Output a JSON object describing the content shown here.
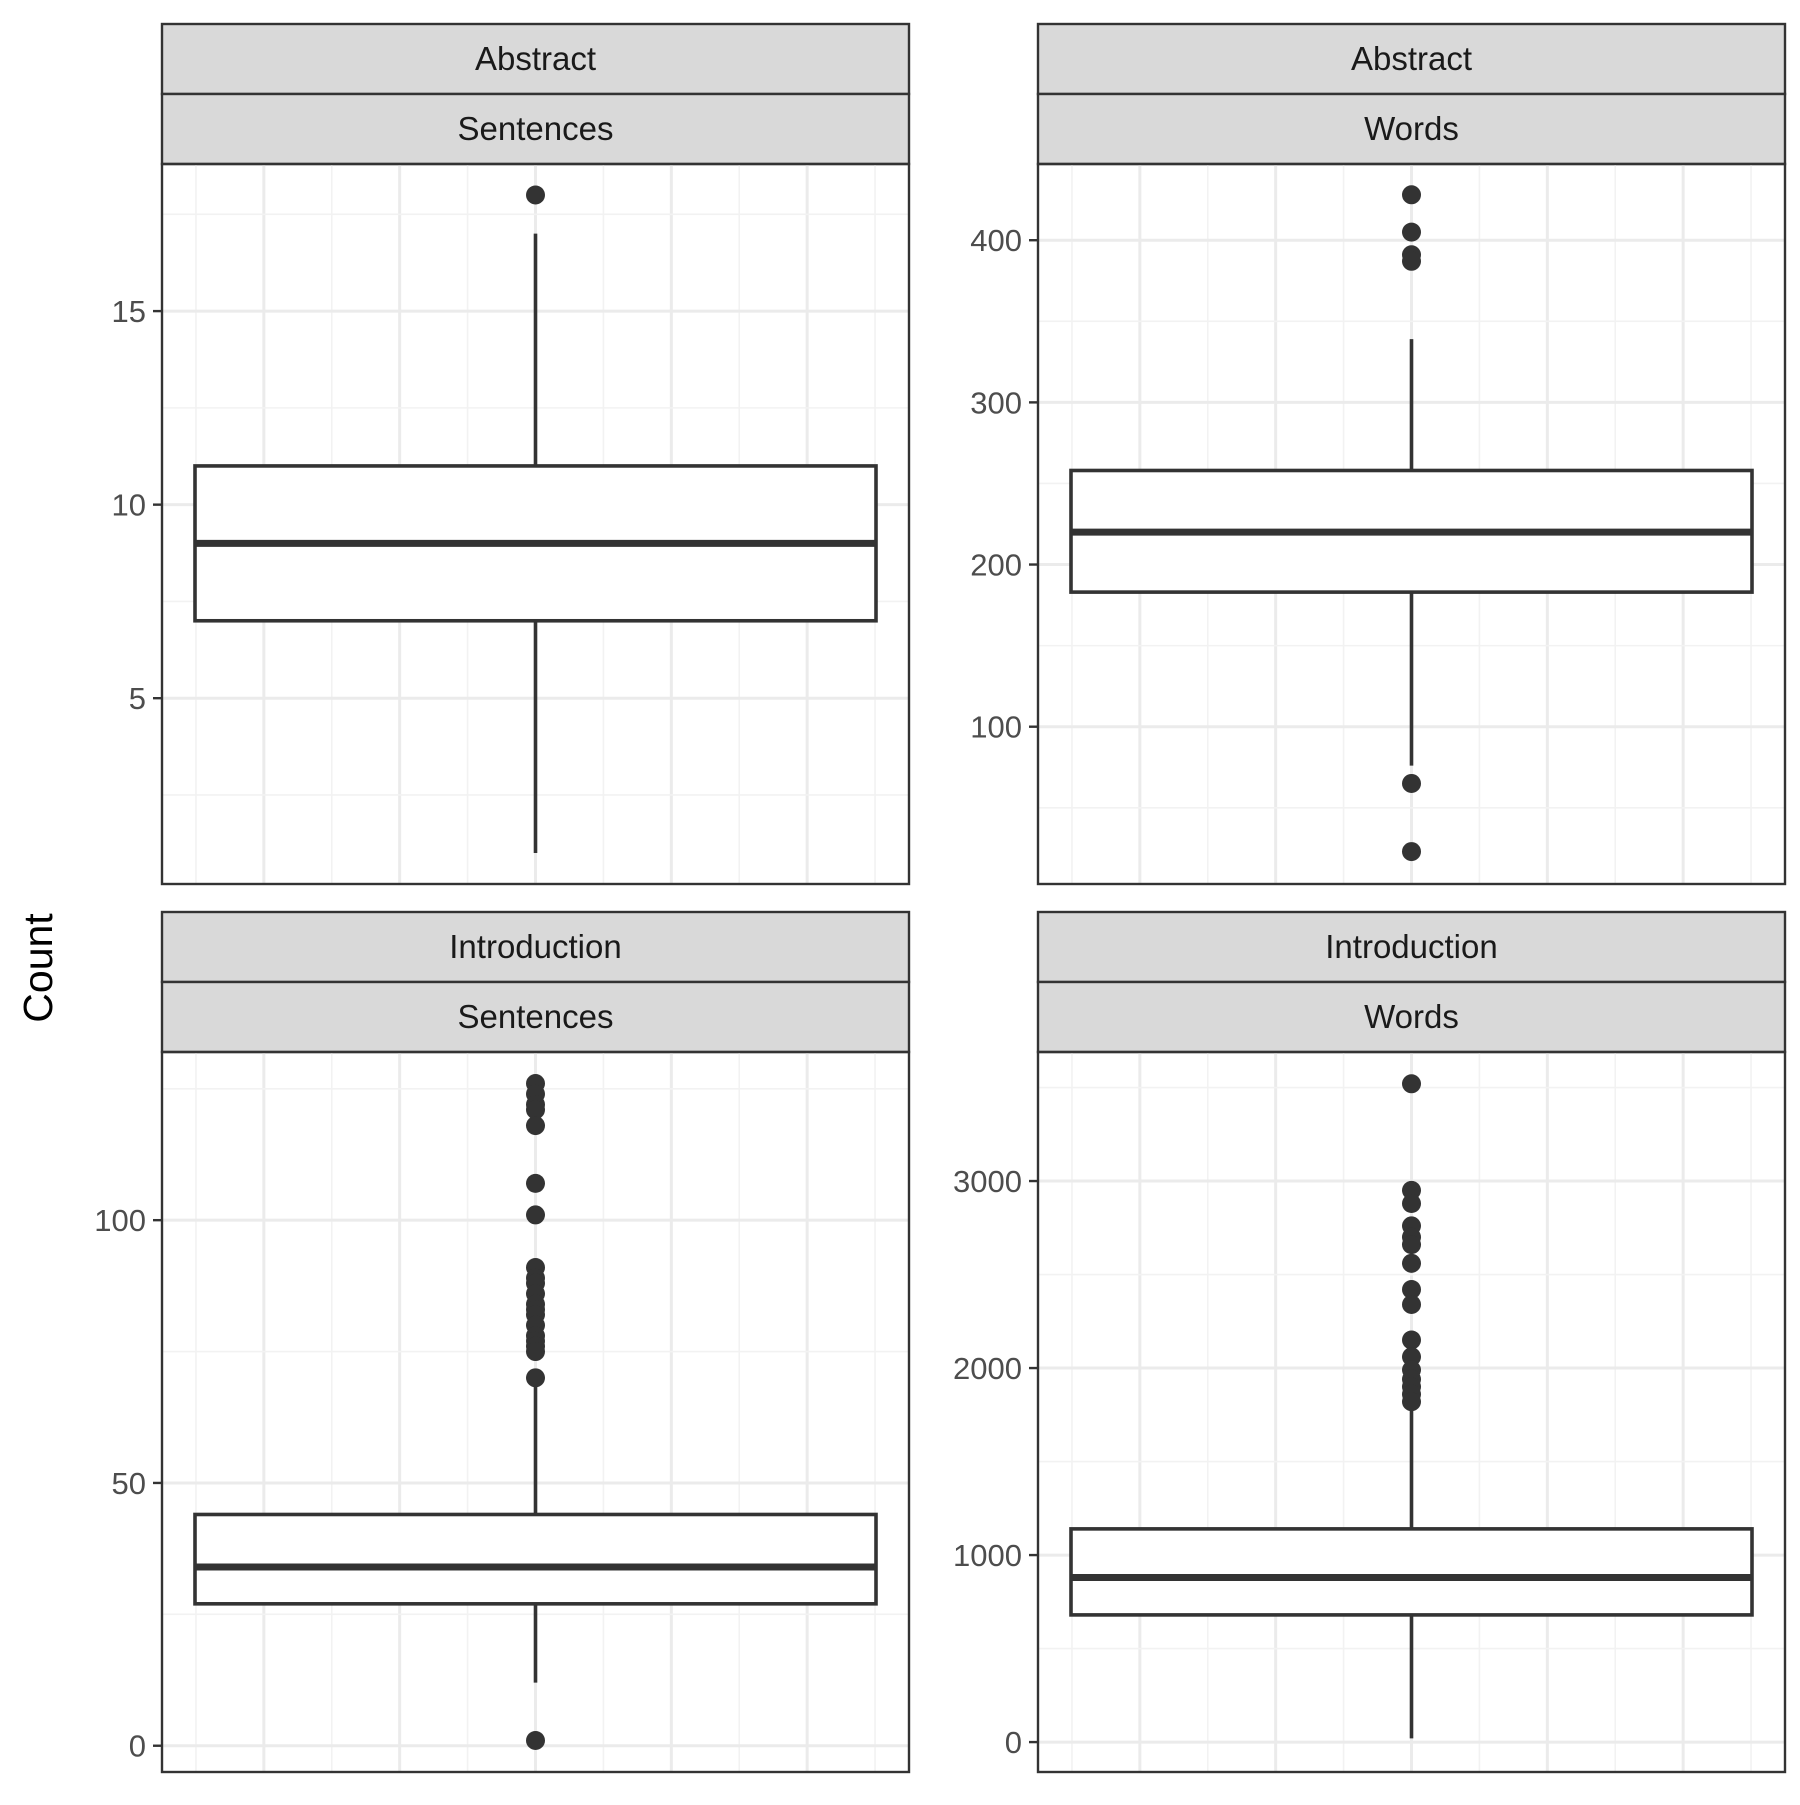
{
  "chart_data": {
    "type": "boxplot",
    "ylabel": "Count",
    "grid": true,
    "facets": [
      {
        "strip_top": "Abstract",
        "strip_bottom": "Sentences",
        "ylim": [
          0.2,
          18.8
        ],
        "yticks": [
          5,
          10,
          15
        ],
        "box": {
          "q1": 7,
          "median": 9,
          "q3": 11,
          "whisker_low": 1,
          "whisker_high": 17
        },
        "outliers": [
          18
        ]
      },
      {
        "strip_top": "Abstract",
        "strip_bottom": "Words",
        "ylim": [
          3,
          447
        ],
        "yticks": [
          100,
          200,
          300,
          400
        ],
        "box": {
          "q1": 183,
          "median": 220,
          "q3": 258,
          "whisker_low": 76,
          "whisker_high": 339
        },
        "outliers": [
          428,
          405,
          391,
          387,
          65,
          23
        ]
      },
      {
        "strip_top": "Introduction",
        "strip_bottom": "Sentences",
        "ylim": [
          -5,
          132
        ],
        "yticks": [
          0,
          50,
          100
        ],
        "box": {
          "q1": 27,
          "median": 34,
          "q3": 44,
          "whisker_low": 12,
          "whisker_high": 69
        },
        "outliers": [
          126,
          124,
          122,
          121,
          118,
          107,
          101,
          91,
          89,
          88,
          86,
          84,
          83,
          82,
          80,
          78,
          77,
          76,
          75,
          70,
          1
        ]
      },
      {
        "strip_top": "Introduction",
        "strip_bottom": "Words",
        "ylim": [
          -160,
          3690
        ],
        "yticks": [
          0,
          1000,
          2000,
          3000
        ],
        "box": {
          "q1": 680,
          "median": 880,
          "q3": 1140,
          "whisker_low": 20,
          "whisker_high": 1800
        },
        "outliers": [
          3520,
          2950,
          2880,
          2760,
          2700,
          2660,
          2560,
          2420,
          2340,
          2150,
          2060,
          1990,
          1940,
          1900,
          1860,
          1820
        ]
      }
    ]
  }
}
